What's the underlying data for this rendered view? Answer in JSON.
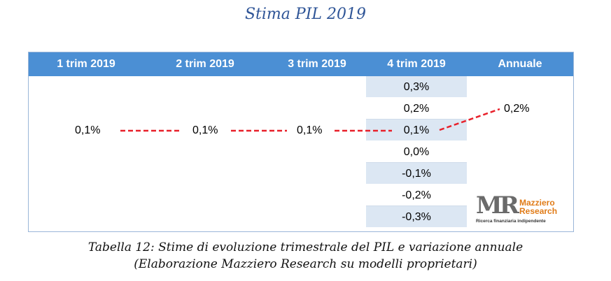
{
  "title": "Stima PIL 2019",
  "headers": [
    "1 trim 2019",
    "2 trim 2019",
    "3 trim 2019",
    "4 trim 2019",
    "Annuale"
  ],
  "quarter_values": [
    "0,1%",
    "0,1%",
    "0,1%"
  ],
  "q4_scenarios": [
    "0,3%",
    "0,2%",
    "0,1%",
    "0,0%",
    "-0,1%",
    "-0,2%",
    "-0,3%"
  ],
  "annual_value": "0,2%",
  "logo": {
    "mark": "MR",
    "name_line1": "Mazziero",
    "name_line2": "Research",
    "tagline": "Ricerca finanziaria indipendente"
  },
  "caption": {
    "line1": "Tabella 12: Stime di evoluzione trimestrale del PIL e variazione annuale",
    "line2": "(Elaborazione Mazziero Research su modelli proprietari)"
  },
  "colors": {
    "header_bg": "#4b8fd4",
    "shaded_cell": "#dce7f3",
    "dashed_line": "#e8202a",
    "title": "#2f5597"
  }
}
